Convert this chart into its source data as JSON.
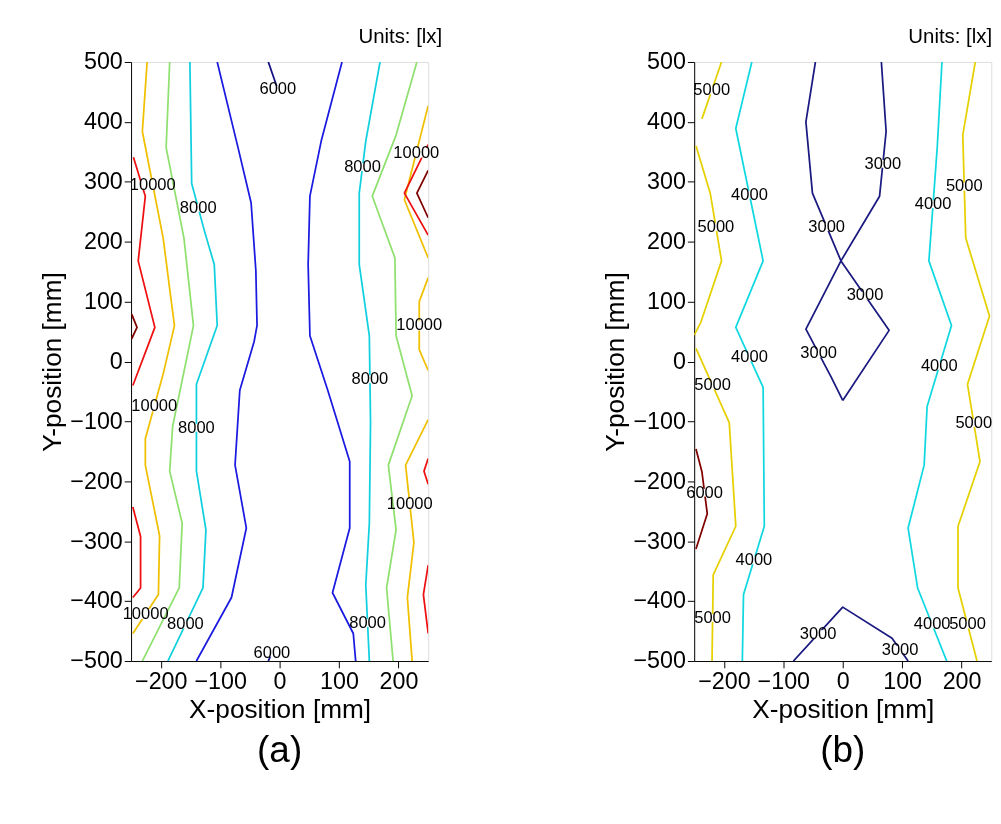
{
  "chart_data": [
    {
      "type": "line",
      "title": "Units: [lx]",
      "xlabel": "X-position [mm]",
      "ylabel": "Y-position [mm]",
      "xlim": [
        -250,
        250
      ],
      "ylim": [
        -500,
        500
      ],
      "xticks": [
        -200,
        -100,
        0,
        100,
        200
      ],
      "yticks": [
        -500,
        -400,
        -300,
        -200,
        -100,
        0,
        100,
        200,
        300,
        400,
        500
      ],
      "grid": false,
      "legend": false,
      "series": [
        {
          "color": "#ee1010",
          "x": [
            -246,
            -226,
            -238,
            -210,
            -247
          ],
          "values": [
            341,
            276,
            168,
            57,
            -40
          ]
        },
        {
          "color": "#800000",
          "x": [
            -249,
            -240,
            -249
          ],
          "values": [
            79,
            57,
            38
          ]
        },
        {
          "color": "#ee1010",
          "x": [
            -247,
            -234,
            -234,
            -247
          ],
          "values": [
            -243,
            -292,
            -378,
            -394
          ]
        },
        {
          "color": "#f0c000",
          "x": [
            -223,
            -231,
            -196,
            -177,
            -196,
            -226,
            -226,
            -202,
            -204,
            -247
          ],
          "values": [
            500,
            384,
            206,
            60,
            -21,
            -129,
            -173,
            -291,
            -389,
            -454
          ]
        },
        {
          "color": "#90e070",
          "x": [
            -185,
            -191,
            -161,
            -145,
            -180,
            -185,
            -164,
            -169,
            -231
          ],
          "values": [
            500,
            357,
            206,
            60,
            -108,
            -183,
            -270,
            -378,
            -500
          ]
        },
        {
          "color": "#10d0e0",
          "x": [
            -151,
            -148,
            -126,
            -110,
            -105,
            -140,
            -140,
            -124,
            -129,
            -188
          ],
          "values": [
            500,
            297,
            216,
            162,
            60,
            -38,
            -183,
            -281,
            -378,
            -500
          ]
        },
        {
          "color": "#1a1ae0",
          "x": [
            -105,
            -70,
            -48,
            -40,
            -38,
            -43,
            -67,
            -75,
            -56,
            -81,
            -140
          ],
          "values": [
            500,
            357,
            265,
            152,
            60,
            33,
            -48,
            -173,
            -278,
            -394,
            -500
          ]
        },
        {
          "color": "#1a1ae0",
          "x": [
            105,
            70,
            51,
            48,
            51,
            81,
            118,
            118,
            89,
            124,
            128
          ],
          "values": [
            500,
            368,
            276,
            162,
            43,
            -48,
            -167,
            -278,
            -386,
            -454,
            -500
          ]
        },
        {
          "color": "#101080",
          "x": [
            -19,
            -3
          ],
          "values": [
            500,
            454
          ]
        },
        {
          "color": "#101080",
          "x": [
            -19,
            -13
          ],
          "values": [
            -500,
            -486
          ]
        },
        {
          "color": "#10d0e0",
          "x": [
            169,
            145,
            134,
            134,
            151,
            153,
            151,
            145,
            151
          ],
          "values": [
            500,
            368,
            281,
            162,
            43,
            -102,
            -270,
            -373,
            -500
          ]
        },
        {
          "color": "#90e070",
          "x": [
            231,
            196,
            156,
            194,
            196,
            223,
            183,
            196,
            180,
            191
          ],
          "values": [
            500,
            378,
            276,
            173,
            43,
            -57,
            -173,
            -281,
            -378,
            -500
          ]
        },
        {
          "color": "#f0c000",
          "x": [
            250,
            210,
            250
          ],
          "values": [
            427,
            270,
            173
          ]
        },
        {
          "color": "#f0c000",
          "x": [
            250,
            212,
            226,
            215,
            223
          ],
          "values": [
            -97,
            -173,
            -302,
            -394,
            -500
          ]
        },
        {
          "color": "#f0c000",
          "x": [
            250,
            235,
            235,
            250
          ],
          "values": [
            140,
            100,
            20,
            -15
          ]
        },
        {
          "color": "#ee1010",
          "x": [
            250,
            210,
            250
          ],
          "values": [
            362,
            281,
            211
          ]
        },
        {
          "color": "#800000",
          "x": [
            250,
            231,
            250
          ],
          "values": [
            319,
            281,
            240
          ]
        },
        {
          "color": "#ee1010",
          "x": [
            250,
            243,
            250
          ],
          "values": [
            -162,
            -183,
            -205
          ]
        },
        {
          "color": "#ee1010",
          "x": [
            250,
            242,
            250
          ],
          "values": [
            -340,
            -389,
            -454
          ]
        }
      ],
      "annotations": [
        {
          "text": "10000",
          "x": -213.5,
          "y": 295
        },
        {
          "text": "8000",
          "x": -137,
          "y": 256.5
        },
        {
          "text": "6000",
          "x": -3,
          "y": 454
        },
        {
          "text": "8000",
          "x": 139.5,
          "y": 324.5
        },
        {
          "text": "10000",
          "x": 230,
          "y": 348.5
        },
        {
          "text": "10000",
          "x": 235,
          "y": 60
        },
        {
          "text": "10000",
          "x": -211,
          "y": -75
        },
        {
          "text": "8000",
          "x": -140,
          "y": -110.5
        },
        {
          "text": "8000",
          "x": 152,
          "y": -29.5
        },
        {
          "text": "10000",
          "x": 219,
          "y": -237.5
        },
        {
          "text": "10000",
          "x": -225.5,
          "y": -421.5
        },
        {
          "text": "8000",
          "x": -158.5,
          "y": -439
        },
        {
          "text": "6000",
          "x": -13,
          "y": -486
        },
        {
          "text": "8000",
          "x": 148,
          "y": -436.5
        },
        "(a)"
      ]
    },
    {
      "type": "line",
      "title": "Units: [lx]",
      "xlabel": "X-position [mm]",
      "ylabel": "Y-position [mm]",
      "xlim": [
        -250,
        250
      ],
      "ylim": [
        -500,
        500
      ],
      "xticks": [
        -200,
        -100,
        0,
        100,
        200
      ],
      "yticks": [
        -500,
        -400,
        -300,
        -200,
        -100,
        0,
        100,
        200,
        300,
        400,
        500
      ],
      "grid": false,
      "legend": false,
      "series": [
        {
          "color": "#e6d000",
          "x": [
            -204,
            -237
          ],
          "values": [
            500,
            405
          ]
        },
        {
          "color": "#e6d000",
          "x": [
            -247,
            -223,
            -204,
            -239,
            -250
          ],
          "values": [
            360,
            281,
            168,
            65,
            44
          ]
        },
        {
          "color": "#e6d000",
          "x": [
            -247,
            -191,
            -180,
            -218,
            -220
          ],
          "values": [
            22,
            -102,
            -275,
            -356,
            -500
          ]
        },
        {
          "color": "#800000",
          "x": [
            -247,
            -237,
            -228,
            -247
          ],
          "values": [
            -146,
            -184,
            -254,
            -313
          ]
        },
        {
          "color": "#10d8e0",
          "x": [
            -153,
            -180,
            -134,
            -180,
            -134,
            -132,
            -167,
            -169
          ],
          "values": [
            500,
            389,
            168,
            57,
            -43,
            -275,
            -389,
            -500
          ]
        },
        {
          "color": "#1a1a80",
          "x": [
            -46,
            -62,
            -51,
            -3,
            78,
            0
          ],
          "values": [
            500,
            400,
            281,
            168,
            52,
            -65
          ]
        },
        {
          "color": "#1a1a80",
          "x": [
            65,
            73,
            62,
            -3,
            -62,
            -19,
            0
          ],
          "values": [
            500,
            384,
            276,
            168,
            54,
            -27,
            -65
          ]
        },
        {
          "color": "#1a1a80",
          "x": [
            -83,
            0,
            83,
            110
          ],
          "values": [
            -500,
            -410,
            -462,
            -500
          ]
        },
        {
          "color": "#10d8e0",
          "x": [
            167,
            159,
            145,
            183,
            142,
            137,
            110,
            126,
            175
          ],
          "values": [
            500,
            357,
            168,
            60,
            -75,
            -173,
            -278,
            -378,
            -500
          ]
        },
        {
          "color": "#e6d000",
          "x": [
            223,
            202,
            207,
            247,
            210,
            231,
            194,
            194,
            226
          ],
          "values": [
            500,
            378,
            206,
            76,
            -38,
            -167,
            -275,
            -378,
            -500
          ]
        }
      ],
      "annotations": [
        {
          "text": "5000",
          "x": -220.5,
          "y": 452.5
        },
        {
          "text": "5000",
          "x": -213.5,
          "y": 224.5
        },
        {
          "text": "5000",
          "x": -219,
          "y": -40
        },
        {
          "text": "5000",
          "x": -219,
          "y": -428
        },
        {
          "text": "6000",
          "x": -232.5,
          "y": -219
        },
        {
          "text": "4000",
          "x": -157,
          "y": 278.5
        },
        {
          "text": "4000",
          "x": -157,
          "y": 7
        },
        {
          "text": "4000",
          "x": -149.5,
          "y": -332
        },
        {
          "text": "3000",
          "x": -27,
          "y": 224.5
        },
        {
          "text": "3000",
          "x": 67.5,
          "y": 330
        },
        {
          "text": "3000",
          "x": 37.5,
          "y": 110
        },
        {
          "text": "3000",
          "x": -40.5,
          "y": 13.5
        },
        {
          "text": "3000",
          "x": -41.5,
          "y": -455
        },
        {
          "text": "3000",
          "x": 96.5,
          "y": -481
        },
        {
          "text": "4000",
          "x": 152,
          "y": 262.5
        },
        {
          "text": "4000",
          "x": 162.5,
          "y": -7.5
        },
        {
          "text": "4000",
          "x": 150.5,
          "y": -439
        },
        {
          "text": "5000",
          "x": 204.5,
          "y": 292
        },
        {
          "text": "5000",
          "x": 220.5,
          "y": -102.5
        },
        {
          "text": "5000",
          "x": 210,
          "y": -439
        },
        "(b)"
      ]
    }
  ]
}
